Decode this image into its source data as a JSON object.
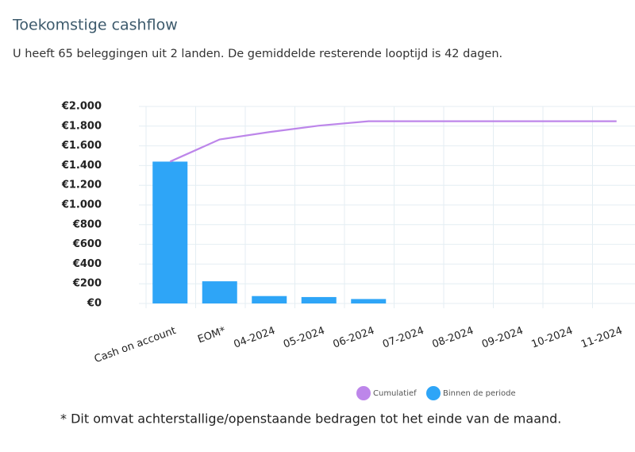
{
  "header": {
    "title": "Toekomstige cashflow",
    "subtitle": "U heeft 65 beleggingen uit 2 landen. De gemiddelde resterende looptijd is 42 dagen."
  },
  "chart_data": {
    "type": "bar",
    "categories": [
      "Cash on account",
      "EOM*",
      "04-2024",
      "05-2024",
      "06-2024",
      "07-2024",
      "08-2024",
      "09-2024",
      "10-2024",
      "11-2024"
    ],
    "series": [
      {
        "name": "Cumulatief",
        "type": "line",
        "color": "#bd86ea",
        "values": [
          1440,
          1665,
          1740,
          1805,
          1850,
          1850,
          1850,
          1850,
          1850,
          1850
        ]
      },
      {
        "name": "Binnen de periode",
        "type": "bar",
        "color": "#2ea5f7",
        "values": [
          1440,
          225,
          75,
          65,
          45,
          0,
          0,
          0,
          0,
          0
        ]
      }
    ],
    "ylim": [
      0,
      2000
    ],
    "yticks": [
      {
        "value": 0,
        "label": "€0"
      },
      {
        "value": 200,
        "label": "€200"
      },
      {
        "value": 400,
        "label": "€400"
      },
      {
        "value": 600,
        "label": "€600"
      },
      {
        "value": 800,
        "label": "€800"
      },
      {
        "value": 1000,
        "label": "€1.000"
      },
      {
        "value": 1200,
        "label": "€1.200"
      },
      {
        "value": 1400,
        "label": "€1.400"
      },
      {
        "value": 1600,
        "label": "€1.600"
      },
      {
        "value": 1800,
        "label": "€1.800"
      },
      {
        "value": 2000,
        "label": "€2.000"
      }
    ],
    "grid": true
  },
  "footnote": "* Dit omvat achterstallige/openstaande bedragen tot het einde van de maand."
}
